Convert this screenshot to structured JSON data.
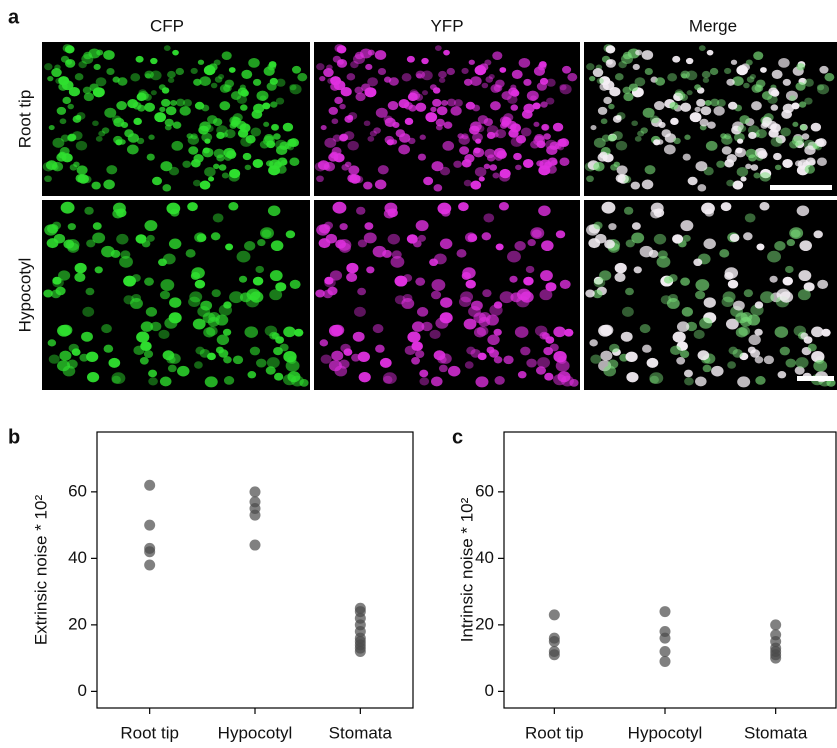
{
  "figure": {
    "panel_a": "a",
    "panel_b": "b",
    "panel_c": "c",
    "columns": [
      "CFP",
      "YFP",
      "Merge"
    ],
    "rows": [
      "Root tip",
      "Hypocotyl"
    ]
  },
  "chart_data": [
    {
      "type": "scatter",
      "ylabel": "Extrinsic noise * 10²",
      "categories": [
        "Root tip",
        "Hypocotyl",
        "Stomata"
      ],
      "values": [
        [
          62,
          50,
          43,
          42,
          38
        ],
        [
          60,
          57,
          55,
          53,
          44
        ],
        [
          25,
          24,
          22,
          20,
          18,
          16,
          15,
          14,
          13,
          12
        ]
      ],
      "color": "#4a4a4a",
      "ylim": [
        -5,
        78
      ],
      "yticks": [
        0,
        20,
        40,
        60
      ]
    },
    {
      "type": "scatter",
      "ylabel": "Intrinsic noise * 10²",
      "categories": [
        "Root tip",
        "Hypocotyl",
        "Stomata"
      ],
      "values": [
        [
          23,
          16,
          15,
          12,
          11
        ],
        [
          24,
          18,
          16,
          12,
          9
        ],
        [
          20,
          17,
          15,
          13,
          12,
          11,
          10
        ]
      ],
      "color": "#4a4a4a",
      "ylim": [
        -5,
        78
      ],
      "yticks": [
        0,
        20,
        40,
        60
      ]
    }
  ]
}
